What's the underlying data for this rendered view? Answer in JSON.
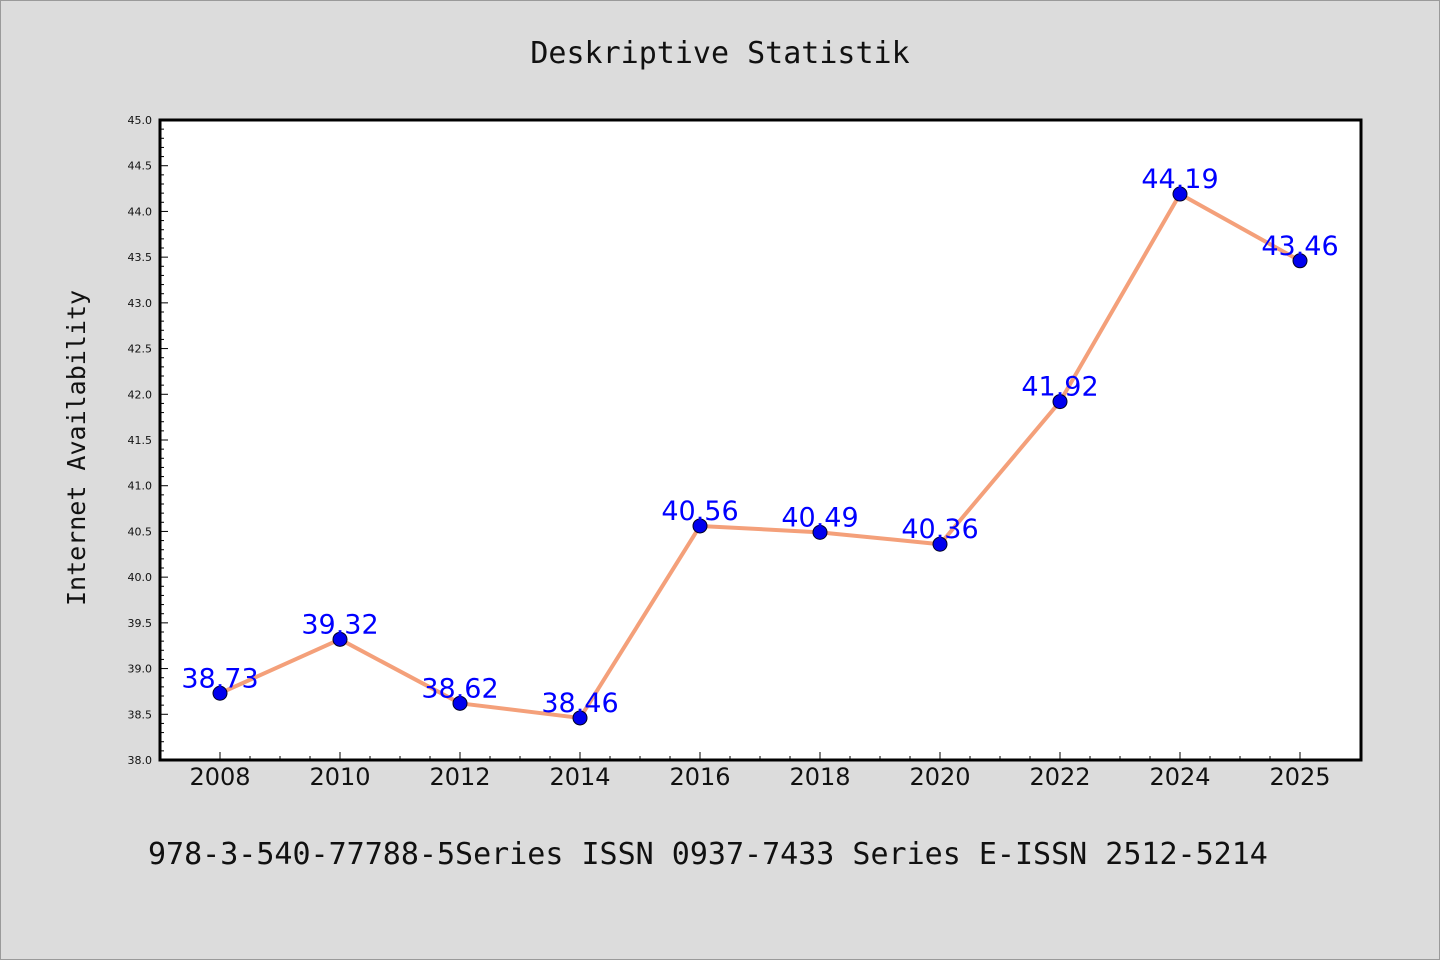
{
  "chart_data": {
    "type": "line",
    "title": "Deskriptive Statistik",
    "xlabel": "",
    "ylabel": "Internet Availability",
    "categories": [
      "2008",
      "2010",
      "2012",
      "2014",
      "2016",
      "2018",
      "2020",
      "2022",
      "2024",
      "2025"
    ],
    "series": [
      {
        "values": [
          38.73,
          39.32,
          38.62,
          38.46,
          40.56,
          40.49,
          40.36,
          41.92,
          44.19,
          43.46
        ],
        "data_labels": [
          "38.73",
          "39.32",
          "38.62",
          "38.46",
          "40.56",
          "40.49",
          "40.36",
          "41.92",
          "44.19",
          "43.46"
        ],
        "line_color": "#f4a07a",
        "marker_color": "#0000ee"
      }
    ],
    "ylim": [
      38.0,
      45.0
    ],
    "yticks": [
      "38.0",
      "38.5",
      "39.0",
      "39.5",
      "40.0",
      "40.5",
      "41.0",
      "41.5",
      "42.0",
      "42.5",
      "43.0",
      "43.5",
      "44.0",
      "44.5",
      "45.0"
    ],
    "label_color": "#0000ff",
    "grid": false,
    "legend": "none"
  },
  "footer": "978-3-540-77788-5Series ISSN 0937-7433 Series E-ISSN 2512-5214",
  "colors": {
    "background": "#dcdcdc",
    "plot_background": "#ffffff",
    "axis": "#000000"
  }
}
